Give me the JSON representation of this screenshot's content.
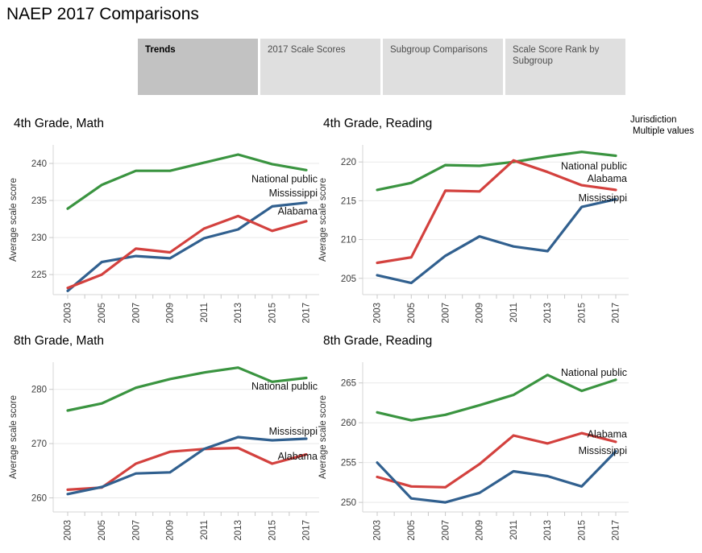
{
  "page": {
    "title": "NAEP 2017 Comparisons"
  },
  "tabs": [
    {
      "label": "Trends",
      "active": true
    },
    {
      "label": "2017 Scale Scores",
      "active": false
    },
    {
      "label": "Subgroup Comparisons",
      "active": false
    },
    {
      "label": "Scale Score Rank by Subgroup",
      "active": false
    }
  ],
  "filter": {
    "title": "Jurisdiction",
    "value": "Multiple values"
  },
  "palette": {
    "national_public": "#3a9440",
    "alabama": "#d3413e",
    "mississippi": "#31608f"
  },
  "chart_data": [
    {
      "type": "line",
      "title": "4th Grade, Math",
      "ylabel": "Average scale score",
      "x": [
        2003,
        2005,
        2007,
        2009,
        2011,
        2013,
        2015,
        2017
      ],
      "yticks": [
        225,
        230,
        235,
        240
      ],
      "ylim": [
        222.3,
        242.5
      ],
      "grid": true,
      "legend_position": "end-of-line-labels",
      "series": [
        {
          "name": "National public",
          "color": "#3a9440",
          "label_y": 237.9,
          "values": [
            233.9,
            237.1,
            239.0,
            239.0,
            240.1,
            241.2,
            239.9,
            239.1
          ]
        },
        {
          "name": "Mississippi",
          "color": "#31608f",
          "label_y": 236.0,
          "values": [
            222.8,
            226.7,
            227.5,
            227.2,
            229.9,
            231.1,
            234.2,
            234.7
          ]
        },
        {
          "name": "Alabama",
          "color": "#d3413e",
          "label_y": 233.6,
          "values": [
            223.2,
            225.0,
            228.5,
            228.0,
            231.2,
            232.9,
            230.9,
            232.2
          ]
        }
      ]
    },
    {
      "type": "line",
      "title": "4th Grade, Reading",
      "ylabel": "Average scale score",
      "x": [
        2003,
        2005,
        2007,
        2009,
        2011,
        2013,
        2015,
        2017
      ],
      "yticks": [
        205,
        210,
        215,
        220
      ],
      "ylim": [
        202.9,
        222.2
      ],
      "grid": true,
      "legend_position": "end-of-line-labels",
      "series": [
        {
          "name": "National public",
          "color": "#3a9440",
          "label_y": 219.5,
          "values": [
            216.4,
            217.3,
            219.6,
            219.5,
            220.0,
            220.7,
            221.3,
            220.8
          ]
        },
        {
          "name": "Mississippi",
          "color": "#31608f",
          "label_y": 215.4,
          "values": [
            205.4,
            204.4,
            207.9,
            210.4,
            209.1,
            208.5,
            214.2,
            215.2
          ]
        },
        {
          "name": "Alabama",
          "color": "#d3413e",
          "label_y": 217.9,
          "values": [
            207.0,
            207.7,
            216.3,
            216.2,
            220.2,
            218.7,
            217.0,
            216.4
          ]
        }
      ]
    },
    {
      "type": "line",
      "title": "8th Grade, Math",
      "ylabel": "Average scale score",
      "x": [
        2003,
        2005,
        2007,
        2009,
        2011,
        2013,
        2015,
        2017
      ],
      "yticks": [
        260,
        270,
        280
      ],
      "ylim": [
        257.4,
        285.0
      ],
      "grid": true,
      "legend_position": "end-of-line-labels",
      "series": [
        {
          "name": "National public",
          "color": "#3a9440",
          "label_y": 280.6,
          "values": [
            276.1,
            277.4,
            280.3,
            281.9,
            283.1,
            284.0,
            281.4,
            282.1
          ]
        },
        {
          "name": "Alabama",
          "color": "#d3413e",
          "label_y": 267.7,
          "values": [
            261.5,
            261.9,
            266.3,
            268.5,
            269.0,
            269.2,
            266.3,
            268.0
          ]
        },
        {
          "name": "Mississippi",
          "color": "#31608f",
          "label_y": 272.3,
          "values": [
            260.7,
            262.0,
            264.5,
            264.7,
            269.0,
            271.2,
            270.6,
            270.9
          ]
        }
      ]
    },
    {
      "type": "line",
      "title": "8th Grade, Reading",
      "ylabel": "Average scale score",
      "x": [
        2003,
        2005,
        2007,
        2009,
        2011,
        2013,
        2015,
        2017
      ],
      "yticks": [
        250,
        255,
        260,
        265
      ],
      "ylim": [
        248.8,
        267.6
      ],
      "grid": true,
      "legend_position": "end-of-line-labels",
      "series": [
        {
          "name": "National public",
          "color": "#3a9440",
          "label_y": 266.3,
          "values": [
            261.3,
            260.3,
            261.0,
            262.2,
            263.5,
            266.0,
            264.0,
            265.4
          ]
        },
        {
          "name": "Alabama",
          "color": "#d3413e",
          "label_y": 258.6,
          "values": [
            253.2,
            252.0,
            251.9,
            254.8,
            258.4,
            257.4,
            258.7,
            257.6
          ]
        },
        {
          "name": "Mississippi",
          "color": "#31608f",
          "label_y": 256.5,
          "values": [
            255.0,
            250.5,
            250.0,
            251.2,
            253.9,
            253.3,
            252.0,
            256.4
          ]
        }
      ]
    }
  ]
}
